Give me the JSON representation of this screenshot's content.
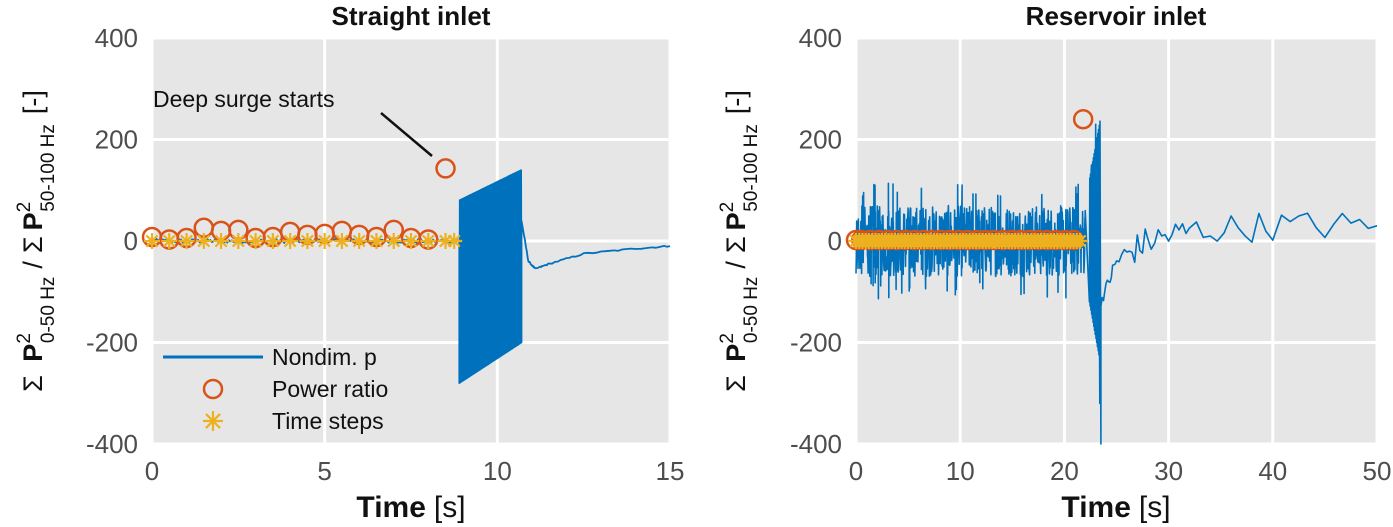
{
  "colors": {
    "panel_bg": "#e6e6e6",
    "grid": "#ffffff",
    "signal": "#0072bd",
    "power_ratio": "#d95319",
    "time_steps": "#edb120",
    "tick_text": "#4d4d4d",
    "label_text": "#111111"
  },
  "ylabel": {
    "sum": "Σ",
    "P": "P",
    "sup": "2",
    "sub_low": "0-50 Hz",
    "slash": "/",
    "sub_high": "50-100 Hz",
    "unit": "[-]"
  },
  "xlabel": {
    "bold": "Time",
    "unit": "[s]"
  },
  "legend": {
    "nondim": "Nondim. p",
    "power": "Power ratio",
    "steps": "Time steps"
  },
  "annotation": {
    "text": "Deep surge starts"
  },
  "chart_data": [
    {
      "type": "line",
      "title": "Straight inlet",
      "xlim": [
        0,
        15
      ],
      "ylim": [
        -400,
        400
      ],
      "xticks": [
        0,
        5,
        10,
        15
      ],
      "yticks": [
        -400,
        -200,
        0,
        200,
        400
      ],
      "grid": true,
      "legend_position": "bottom-left",
      "series": [
        {
          "name": "Nondim. p",
          "kind": "line",
          "segments": [
            {
              "x0": 0,
              "x1": 8.9,
              "ylo": -4,
              "yhi": 4
            },
            {
              "x0": 8.9,
              "x1": 10.7,
              "ylo_start": -280,
              "ylo_end": -200,
              "yhi_start": 80,
              "yhi_end": 140
            },
            {
              "x0": 10.7,
              "x1": 15,
              "recovery": [
                [
                  10.7,
                  40
                ],
                [
                  10.9,
                  -40
                ],
                [
                  11.1,
                  -55
                ],
                [
                  11.5,
                  -45
                ],
                [
                  12.5,
                  -25
                ],
                [
                  14,
                  -15
                ],
                [
                  15,
                  -10
                ]
              ]
            }
          ]
        },
        {
          "name": "Power ratio",
          "kind": "marker",
          "x": [
            0,
            0.5,
            1,
            1.5,
            2,
            2.5,
            3,
            3.5,
            4,
            4.5,
            5,
            5.5,
            6,
            6.5,
            7,
            7.5,
            8,
            8.5
          ],
          "y": [
            8,
            3,
            6,
            26,
            20,
            22,
            6,
            8,
            18,
            12,
            14,
            20,
            12,
            8,
            22,
            6,
            3,
            143
          ]
        },
        {
          "name": "Time steps",
          "kind": "marker",
          "x": [
            0,
            0.5,
            1,
            1.5,
            2,
            2.5,
            3,
            3.5,
            4,
            4.5,
            5,
            5.5,
            6,
            6.5,
            7,
            7.5,
            8,
            8.5,
            8.75
          ],
          "y": [
            0,
            0,
            0,
            0,
            0,
            0,
            0,
            0,
            0,
            0,
            0,
            0,
            0,
            0,
            0,
            0,
            0,
            0,
            0
          ]
        }
      ],
      "annotations": [
        {
          "text": "Deep surge starts",
          "points_to": [
            8.5,
            143
          ]
        }
      ]
    },
    {
      "type": "line",
      "title": "Reservoir inlet",
      "xlim": [
        0,
        50
      ],
      "ylim": [
        -400,
        400
      ],
      "xticks": [
        0,
        10,
        20,
        30,
        40,
        50
      ],
      "yticks": [
        -400,
        -200,
        0,
        200,
        400
      ],
      "grid": true,
      "series": [
        {
          "name": "Nondim. p",
          "kind": "line",
          "segments": [
            {
              "x0": 0,
              "x1": 22,
              "ylo": -70,
              "yhi": 70
            },
            {
              "x0": 22,
              "x1": 23.5,
              "surge": [
                [
                  22,
                  60
                ],
                [
                  22.6,
                  150
                ],
                [
                  23,
                  230
                ],
                [
                  23.2,
                  -150
                ],
                [
                  23.4,
                  -320
                ],
                [
                  23.5,
                  -400
                ]
              ]
            },
            {
              "x0": 23.5,
              "x1": 50,
              "recovery": [
                [
                  23.5,
                  -120
                ],
                [
                  25,
                  -40
                ],
                [
                  28,
                  0
                ],
                [
                  32,
                  20
                ],
                [
                  40,
                  30
                ],
                [
                  50,
                  30
                ]
              ]
            }
          ]
        },
        {
          "name": "Power ratio",
          "kind": "marker",
          "x": [
            0,
            21.8
          ],
          "y": [
            2,
            240
          ]
        },
        {
          "name": "Time steps",
          "kind": "marker",
          "x_range": [
            0,
            21.5
          ],
          "count": 70,
          "y": 0
        }
      ]
    }
  ]
}
